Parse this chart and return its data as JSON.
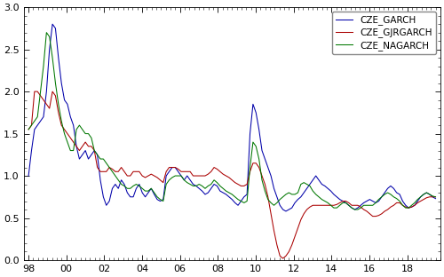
{
  "ylim": [
    0.0,
    3.0
  ],
  "xlim": [
    1997.75,
    2019.75
  ],
  "yticks": [
    0.0,
    0.5,
    1.0,
    1.5,
    2.0,
    2.5,
    3.0
  ],
  "xtick_labels": [
    "98",
    "00",
    "02",
    "04",
    "06",
    "08",
    "10",
    "12",
    "14",
    "16",
    "18"
  ],
  "xtick_positions": [
    1998,
    2000,
    2002,
    2004,
    2006,
    2008,
    2010,
    2012,
    2014,
    2016,
    2018
  ],
  "line_colors": [
    "#0000aa",
    "#aa0000",
    "#007700"
  ],
  "legend_labels": [
    "CZE_GARCH",
    "CZE_GJRGARCH",
    "CZE_NAGARCH"
  ],
  "legend_loc": "upper right",
  "background_color": "#ffffff",
  "linewidth": 0.75,
  "garch": [
    1.0,
    1.3,
    1.55,
    1.6,
    1.65,
    1.7,
    2.0,
    2.5,
    2.8,
    2.75,
    2.4,
    2.1,
    1.9,
    1.85,
    1.7,
    1.6,
    1.35,
    1.2,
    1.25,
    1.3,
    1.2,
    1.25,
    1.3,
    1.25,
    0.95,
    0.75,
    0.65,
    0.7,
    0.85,
    0.9,
    0.85,
    0.95,
    0.9,
    0.8,
    0.75,
    0.75,
    0.85,
    0.9,
    0.8,
    0.75,
    0.8,
    0.85,
    0.78,
    0.72,
    0.7,
    0.72,
    1.0,
    1.05,
    1.1,
    1.1,
    1.05,
    1.0,
    0.95,
    1.0,
    0.95,
    0.9,
    0.88,
    0.85,
    0.82,
    0.78,
    0.8,
    0.85,
    0.9,
    0.88,
    0.82,
    0.8,
    0.78,
    0.75,
    0.72,
    0.68,
    0.65,
    0.7,
    0.75,
    0.78,
    1.5,
    1.85,
    1.75,
    1.55,
    1.3,
    1.2,
    1.1,
    1.0,
    0.85,
    0.75,
    0.65,
    0.6,
    0.58,
    0.6,
    0.62,
    0.68,
    0.72,
    0.75,
    0.8,
    0.85,
    0.9,
    0.95,
    1.0,
    0.95,
    0.9,
    0.88,
    0.85,
    0.82,
    0.78,
    0.75,
    0.72,
    0.7,
    0.68,
    0.65,
    0.62,
    0.6,
    0.62,
    0.65,
    0.68,
    0.7,
    0.72,
    0.7,
    0.68,
    0.7,
    0.75,
    0.8,
    0.85,
    0.88,
    0.85,
    0.8,
    0.78,
    0.7,
    0.65,
    0.62,
    0.63,
    0.65,
    0.7,
    0.75,
    0.78,
    0.8,
    0.78,
    0.75,
    0.73,
    0.75
  ],
  "gjrgarch": [
    1.55,
    1.6,
    2.0,
    2.0,
    1.95,
    1.9,
    1.85,
    1.8,
    2.0,
    1.95,
    1.75,
    1.6,
    1.55,
    1.5,
    1.45,
    1.4,
    1.35,
    1.3,
    1.35,
    1.4,
    1.35,
    1.35,
    1.3,
    1.1,
    1.05,
    1.05,
    1.05,
    1.1,
    1.08,
    1.05,
    1.05,
    1.1,
    1.05,
    1.0,
    1.0,
    1.05,
    1.05,
    1.05,
    1.0,
    0.98,
    1.0,
    1.02,
    1.0,
    0.98,
    0.95,
    0.92,
    1.05,
    1.1,
    1.1,
    1.1,
    1.08,
    1.05,
    1.05,
    1.05,
    1.05,
    1.0,
    1.0,
    1.0,
    1.0,
    1.0,
    1.02,
    1.05,
    1.1,
    1.08,
    1.05,
    1.02,
    1.0,
    0.98,
    0.95,
    0.92,
    0.9,
    0.88,
    0.88,
    0.9,
    1.05,
    1.15,
    1.15,
    1.1,
    1.0,
    0.9,
    0.75,
    0.55,
    0.35,
    0.18,
    0.05,
    0.02,
    0.05,
    0.1,
    0.18,
    0.28,
    0.38,
    0.48,
    0.55,
    0.6,
    0.63,
    0.65,
    0.65,
    0.65,
    0.65,
    0.65,
    0.65,
    0.65,
    0.65,
    0.66,
    0.68,
    0.7,
    0.7,
    0.68,
    0.65,
    0.65,
    0.65,
    0.63,
    0.6,
    0.58,
    0.55,
    0.52,
    0.52,
    0.53,
    0.55,
    0.58,
    0.6,
    0.63,
    0.65,
    0.68,
    0.68,
    0.65,
    0.63,
    0.62,
    0.63,
    0.65,
    0.68,
    0.7,
    0.72,
    0.74,
    0.75,
    0.75,
    0.75
  ],
  "nagarch": [
    1.55,
    1.6,
    1.65,
    1.7,
    2.0,
    2.3,
    2.7,
    2.65,
    2.4,
    2.1,
    1.85,
    1.65,
    1.5,
    1.4,
    1.3,
    1.3,
    1.55,
    1.6,
    1.55,
    1.5,
    1.5,
    1.45,
    1.3,
    1.25,
    1.2,
    1.2,
    1.15,
    1.1,
    1.05,
    1.0,
    0.95,
    0.9,
    0.88,
    0.85,
    0.85,
    0.88,
    0.9,
    0.88,
    0.85,
    0.82,
    0.82,
    0.85,
    0.8,
    0.75,
    0.72,
    0.7,
    0.9,
    0.95,
    0.98,
    1.0,
    1.0,
    1.0,
    0.95,
    0.92,
    0.9,
    0.88,
    0.88,
    0.9,
    0.88,
    0.85,
    0.88,
    0.9,
    0.95,
    0.92,
    0.88,
    0.85,
    0.82,
    0.8,
    0.78,
    0.75,
    0.72,
    0.7,
    0.68,
    0.7,
    1.1,
    1.4,
    1.35,
    1.2,
    0.95,
    0.82,
    0.72,
    0.68,
    0.65,
    0.68,
    0.72,
    0.75,
    0.78,
    0.8,
    0.78,
    0.78,
    0.8,
    0.9,
    0.92,
    0.9,
    0.88,
    0.82,
    0.78,
    0.75,
    0.72,
    0.7,
    0.68,
    0.65,
    0.62,
    0.62,
    0.65,
    0.68,
    0.68,
    0.65,
    0.62,
    0.6,
    0.6,
    0.62,
    0.65,
    0.65,
    0.65,
    0.65,
    0.68,
    0.72,
    0.75,
    0.78,
    0.8,
    0.78,
    0.75,
    0.73,
    0.7,
    0.65,
    0.62,
    0.62,
    0.65,
    0.68,
    0.72,
    0.75,
    0.78,
    0.8,
    0.78,
    0.76,
    0.75
  ]
}
